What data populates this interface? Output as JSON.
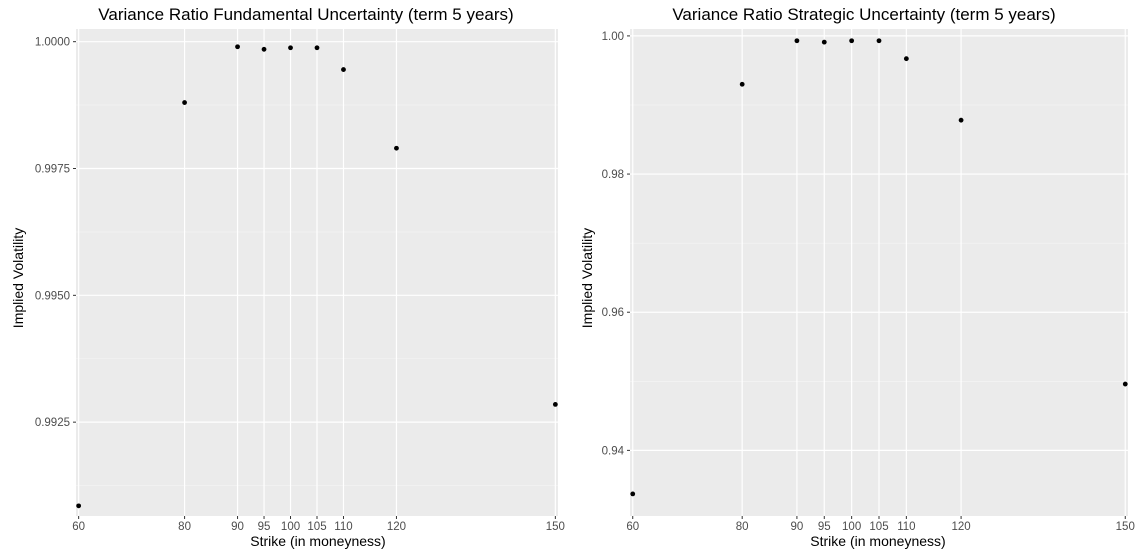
{
  "chart_data": [
    {
      "type": "scatter",
      "title": "Variance Ratio Fundamental Uncertainty (term 5 years)",
      "xlabel": "Strike (in moneyness)",
      "ylabel": "Implied Volatility",
      "xlim": [
        59.5,
        150.5
      ],
      "ylim": [
        0.99065,
        1.00025
      ],
      "x_ticks": [
        60,
        80,
        90,
        95,
        100,
        105,
        110,
        120,
        150
      ],
      "y_ticks": [
        0.9925,
        0.995,
        0.9975,
        1.0
      ],
      "y_tick_labels": [
        "0.9925",
        "0.9950",
        "0.9975",
        "1.0000"
      ],
      "grid": true,
      "x": [
        60,
        80,
        90,
        95,
        100,
        105,
        110,
        120,
        150
      ],
      "y": [
        0.99085,
        0.9988,
        0.9999,
        0.99985,
        0.99988,
        0.99988,
        0.99945,
        0.9979,
        0.99285
      ],
      "colors": {
        "panel": "#ebebeb",
        "grid_major": "#ffffff",
        "point": "#000000"
      }
    },
    {
      "type": "scatter",
      "title": "Variance Ratio Strategic Uncertainty (term 5 years)",
      "xlabel": "Strike (in moneyness)",
      "ylabel": "Implied Volatility",
      "xlim": [
        59.5,
        150.5
      ],
      "ylim": [
        0.9305,
        1.001
      ],
      "x_ticks": [
        60,
        80,
        90,
        95,
        100,
        105,
        110,
        120,
        150
      ],
      "y_ticks": [
        0.94,
        0.96,
        0.98,
        1.0
      ],
      "y_tick_labels": [
        "0.94",
        "0.96",
        "0.98",
        "1.00"
      ],
      "grid": true,
      "x": [
        60,
        80,
        90,
        95,
        100,
        105,
        110,
        120,
        150
      ],
      "y": [
        0.9337,
        0.993,
        0.9993,
        0.9991,
        0.9993,
        0.9993,
        0.9967,
        0.9878,
        0.9496
      ],
      "colors": {
        "panel": "#ebebeb",
        "grid_major": "#ffffff",
        "point": "#000000"
      }
    }
  ]
}
